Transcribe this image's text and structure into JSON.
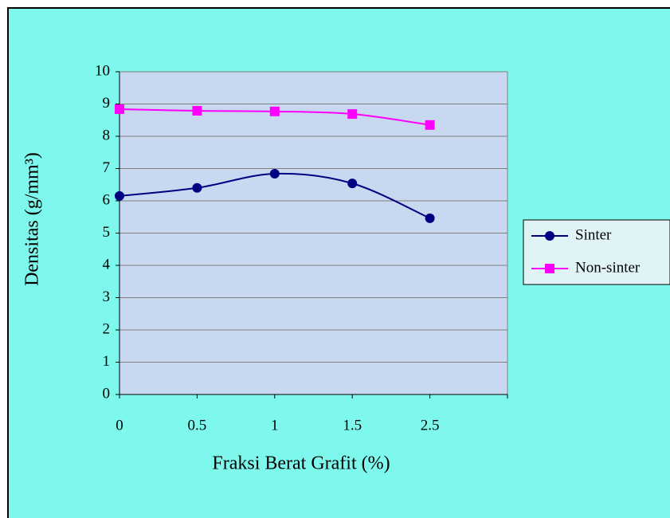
{
  "chart_data": {
    "type": "line",
    "x_label": "Fraksi Berat Grafit (%)",
    "y_label": "Densitas (g/mm³)",
    "categories": [
      "0",
      "0.5",
      "1",
      "1.5",
      "2.5",
      null
    ],
    "series": [
      {
        "name": "Sinter",
        "color": "#000080",
        "marker": "circle",
        "values": [
          6.15,
          6.4,
          6.84,
          6.54,
          5.46,
          null
        ]
      },
      {
        "name": "Non-sinter",
        "color": "#ff00ff",
        "marker": "square",
        "values": [
          8.84,
          8.79,
          8.77,
          8.69,
          8.35,
          null
        ]
      }
    ],
    "ylim": [
      0,
      10
    ],
    "yticks": [
      0,
      1,
      2,
      3,
      4,
      5,
      6,
      7,
      8,
      9,
      10
    ],
    "grid": true,
    "legend": "right",
    "smooth": true
  }
}
